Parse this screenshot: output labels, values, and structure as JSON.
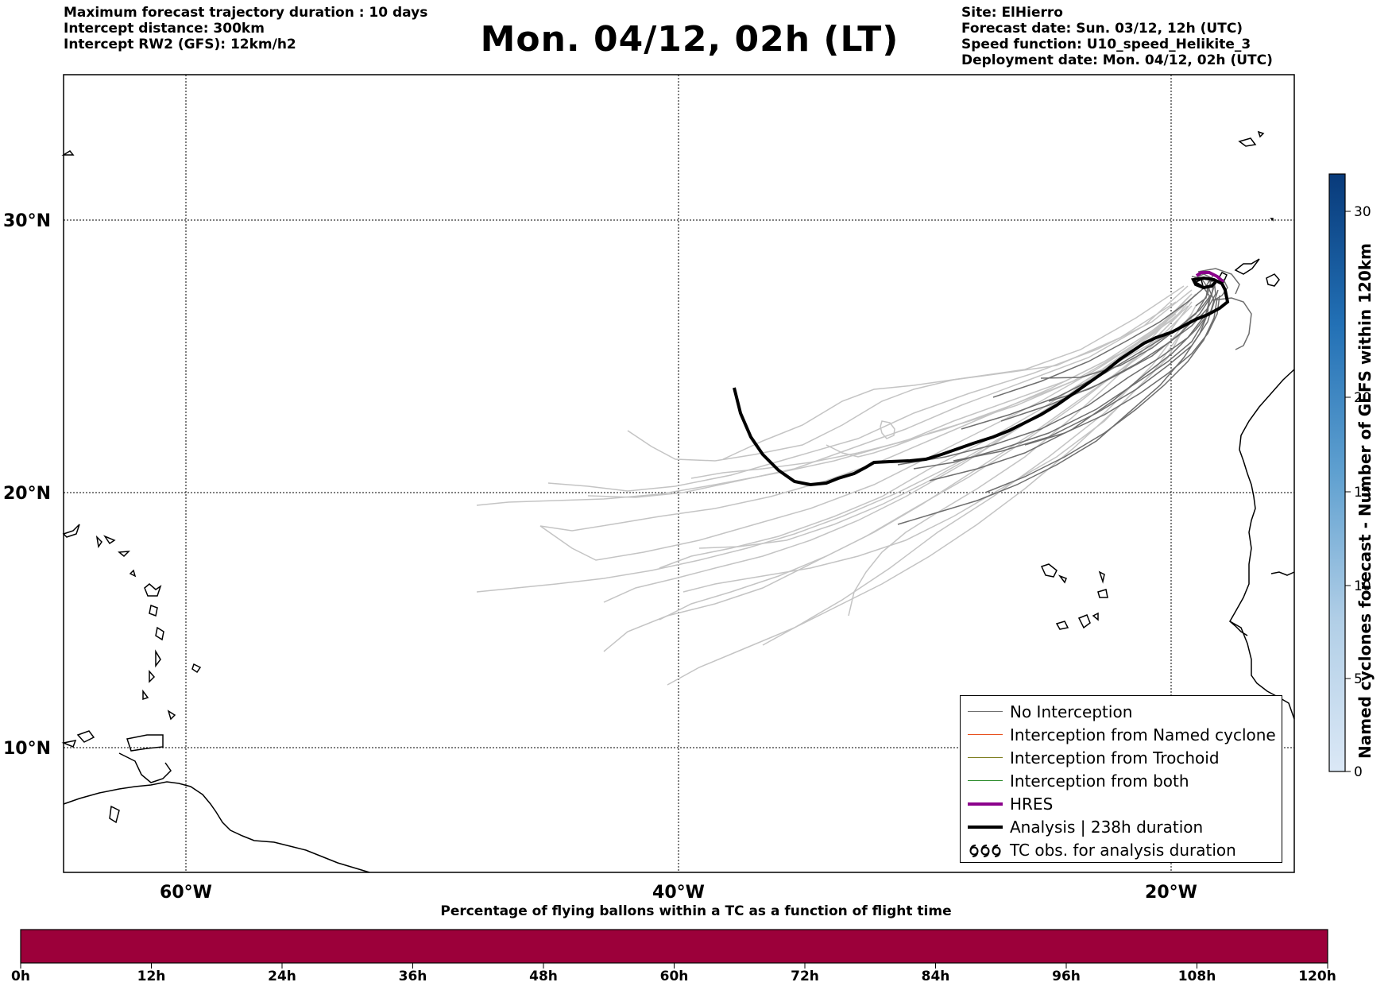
{
  "header": {
    "left_lines": [
      "Maximum forecast trajectory duration : 10 days",
      "Intercept distance: 300km",
      "Intercept RW2 (GFS):  12km/h2"
    ],
    "title": "Mon. 04/12, 02h (LT)",
    "right_lines": [
      "Site: ElHierro",
      "Forecast date: Sun. 03/12, 12h (UTC)",
      "Speed function: U10_speed_Helikite_3",
      "Deployment date: Mon. 04/12, 02h (UTC)"
    ]
  },
  "map": {
    "lat_labels": [
      "30°N",
      "20°N",
      "10°N"
    ],
    "lon_labels": [
      "60°W",
      "40°W",
      "20°W"
    ]
  },
  "legend": {
    "items": [
      {
        "label": "No Interception",
        "color": "#707070"
      },
      {
        "label": "Interception from Named cyclone",
        "color": "#e8501e"
      },
      {
        "label": "Interception from Trochoid",
        "color": "#7d7d1e"
      },
      {
        "label": "Interception from both",
        "color": "#2a8a2a"
      },
      {
        "label": "HRES",
        "color": "#8b008b"
      },
      {
        "label": "Analysis | 238h duration",
        "color": "#000000"
      },
      {
        "label": "TC obs. for analysis duration",
        "icon": "cyclone-symbols-icon"
      }
    ]
  },
  "colorbar": {
    "label": "Named cyclones forecast - Number of GEFS within 120km",
    "ticks": [
      "0",
      "5",
      "10",
      "15",
      "20",
      "30"
    ]
  },
  "bottom_bar": {
    "title": "Percentage of flying ballons within a TC as a function of flight time",
    "color": "#9c003a",
    "ticks": [
      "0h",
      "12h",
      "24h",
      "36h",
      "48h",
      "60h",
      "72h",
      "84h",
      "96h",
      "108h",
      "120h"
    ]
  }
}
